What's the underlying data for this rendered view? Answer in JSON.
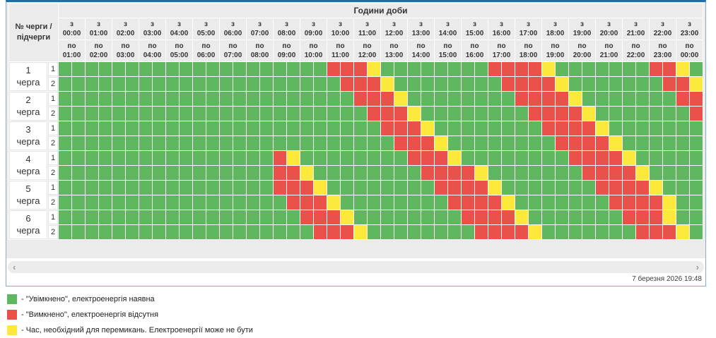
{
  "panel": {
    "hours_title": "Години доби",
    "corner_label": "№ черги / підчерги",
    "from_label": "з",
    "to_label": "по",
    "time_columns": [
      {
        "z": "00:00",
        "po": "01:00"
      },
      {
        "z": "01:00",
        "po": "02:00"
      },
      {
        "z": "02:00",
        "po": "03:00"
      },
      {
        "z": "03:00",
        "po": "04:00"
      },
      {
        "z": "04:00",
        "po": "05:00"
      },
      {
        "z": "05:00",
        "po": "06:00"
      },
      {
        "z": "06:00",
        "po": "07:00"
      },
      {
        "z": "07:00",
        "po": "08:00"
      },
      {
        "z": "08:00",
        "po": "09:00"
      },
      {
        "z": "09:00",
        "po": "10:00"
      },
      {
        "z": "10:00",
        "po": "11:00"
      },
      {
        "z": "11:00",
        "po": "12:00"
      },
      {
        "z": "12:00",
        "po": "13:00"
      },
      {
        "z": "13:00",
        "po": "14:00"
      },
      {
        "z": "14:00",
        "po": "15:00"
      },
      {
        "z": "15:00",
        "po": "16:00"
      },
      {
        "z": "16:00",
        "po": "17:00"
      },
      {
        "z": "17:00",
        "po": "18:00"
      },
      {
        "z": "18:00",
        "po": "19:00"
      },
      {
        "z": "19:00",
        "po": "20:00"
      },
      {
        "z": "20:00",
        "po": "21:00"
      },
      {
        "z": "21:00",
        "po": "22:00"
      },
      {
        "z": "22:00",
        "po": "23:00"
      },
      {
        "z": "23:00",
        "po": "00:00"
      }
    ],
    "queues": [
      {
        "label": "1 черга",
        "rows": [
          {
            "num": "1",
            "cells": "GGGGGGGGGGGGGGGGGGGGRRRYGGGGGGGGRRRRYGGGGGGGRRYG"
          },
          {
            "num": "2",
            "cells": "GGGGGGGGGGGGGGGGGGGGGRRRYGGGGGGGGRRRRYGGGGGGGRRY"
          }
        ]
      },
      {
        "label": "2 черга",
        "rows": [
          {
            "num": "1",
            "cells": "GGGGGGGGGGGGGGGGGGGGGGRRRYGGGGGGGGRRRRYGGGGGGGRR"
          },
          {
            "num": "2",
            "cells": "GGGGGGGGGGGGGGGGGGGGGGGRRRYGGGGGGGGRRRRYGGGGGGGR"
          }
        ]
      },
      {
        "label": "3 черга",
        "rows": [
          {
            "num": "1",
            "cells": "GGGGGGGGGGGGGGGGGGGGGGGGRRRYGGGGGGGGRRRRYGGGGGGG"
          },
          {
            "num": "2",
            "cells": "GGGGGGGGGGGGGGGGGGGGGGGGGRRRYGGGGGGGGRRRRYGGGGGG"
          }
        ]
      },
      {
        "label": "4 черга",
        "rows": [
          {
            "num": "1",
            "cells": "GGGGGGGGGGGGGGGGRYGGGGGGGGRRRYGGGGGGGGRRRRYGGGGG"
          },
          {
            "num": "2",
            "cells": "GGGGGGGGGGGGGGGGRRYGGGGGGGGRRRRYGGGGGGGRRRRYGGGG"
          }
        ]
      },
      {
        "label": "5 черга",
        "rows": [
          {
            "num": "1",
            "cells": "GGGGGGGGGGGGGGGGRRRYGGGGGGGGRRRRYGGGGGGGRRRRYGGG"
          },
          {
            "num": "2",
            "cells": "GGGGGGGGGGGGGGGGGRRRYGGGGGGGGRRRRYGGGGGGGRRRRYGG"
          }
        ]
      },
      {
        "label": "6 черга",
        "rows": [
          {
            "num": "1",
            "cells": "GGGGGGGGGGGGGGGGGGRRRYGGGGGGGGRRRRYGGGGGGGRRRYGG"
          },
          {
            "num": "2",
            "cells": "GGGGGGGGGGGGGGGGGGGRRRYGGGGGGGGRRRRYGGGGGGGRRRYG"
          }
        ]
      }
    ],
    "cell_colors": {
      "G": "#5fb760",
      "R": "#e9514a",
      "Y": "#fce93c"
    },
    "cell_meaning": {
      "G": "on-power-available",
      "R": "off-power-absent",
      "Y": "switching-time"
    },
    "scrollbar": {
      "left_arrow": "‹",
      "right_arrow": "›"
    },
    "timestamp": "7 березня 2026 19:48"
  },
  "legend": {
    "items": [
      {
        "key": "G",
        "text": "- \"Увімкнено\", електроенергія наявна"
      },
      {
        "key": "R",
        "text": "- \"Вимкнено\", електроенергія відсутня"
      },
      {
        "key": "Y",
        "text": "- Час, необхідний для перемикань. Електроенергії може не бути"
      }
    ]
  }
}
